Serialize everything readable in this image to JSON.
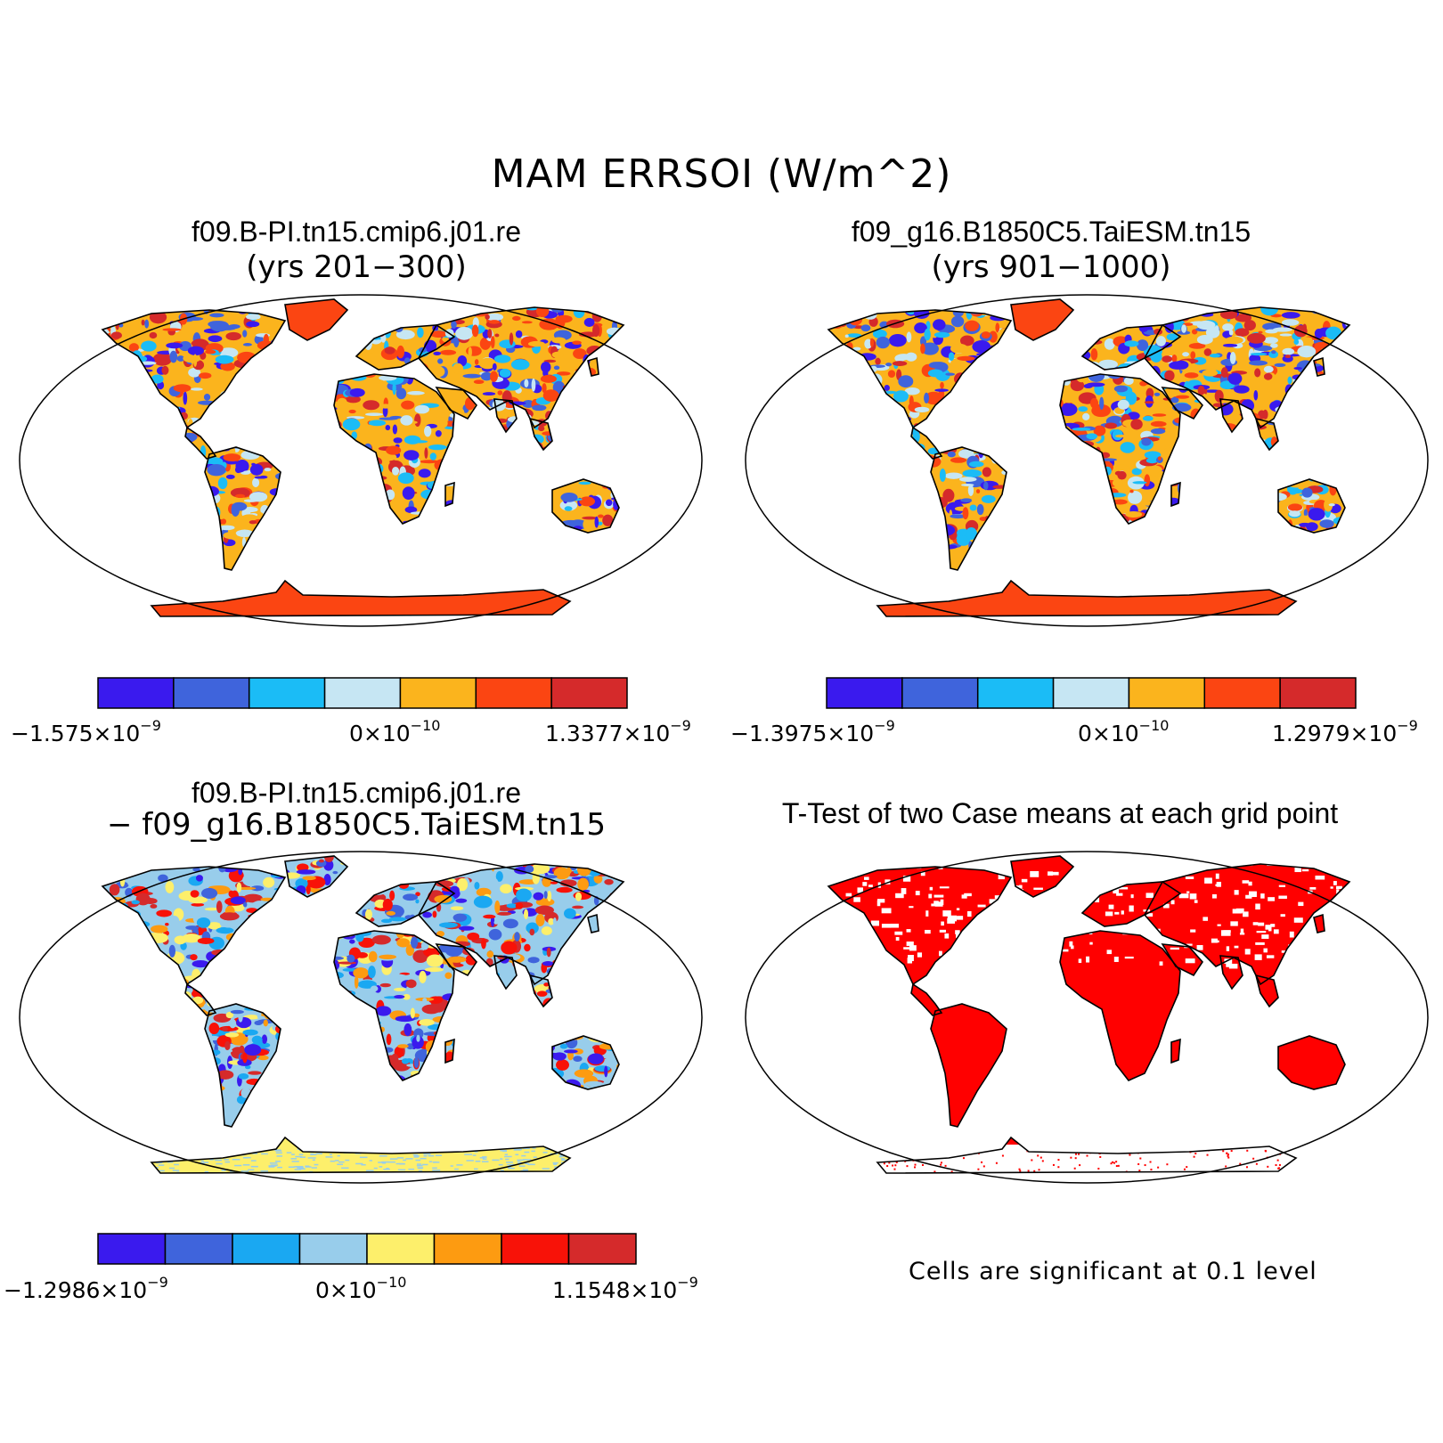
{
  "title": "MAM ERRSOI (W/m^2)",
  "colors": {
    "seq7": [
      "#3a1aee",
      "#3f64dc",
      "#1bbcf6",
      "#c6e6f3",
      "#fbb41d",
      "#fb4512",
      "#d52a2b"
    ],
    "seq8": [
      "#3a1aee",
      "#3f64dc",
      "#1aa8f2",
      "#98cdeb",
      "#fdef6b",
      "#fd9b11",
      "#f81208",
      "#d52a2b"
    ],
    "signif": "#ff0000"
  },
  "panels": [
    {
      "title": "f09.B-PI.tn15.cmip6.j01.re",
      "subtitle": "(yrs 201−300)",
      "colorbar": {
        "min_label": {
          "base": "−1.575×10",
          "exp": "−9"
        },
        "mid_label": {
          "base": "0×10",
          "exp": "−10"
        },
        "max_label": {
          "base": "1.3377×10",
          "exp": "−9"
        }
      }
    },
    {
      "title": "f09_g16.B1850C5.TaiESM.tn15",
      "subtitle": "(yrs 901−1000)",
      "colorbar": {
        "min_label": {
          "base": "−1.3975×10",
          "exp": "−9"
        },
        "mid_label": {
          "base": "0×10",
          "exp": "−10"
        },
        "max_label": {
          "base": "1.2979×10",
          "exp": "−9"
        }
      }
    },
    {
      "title": "f09.B-PI.tn15.cmip6.j01.re",
      "subtitle": "− f09_g16.B1850C5.TaiESM.tn15",
      "colorbar": {
        "min_label": {
          "base": "−1.2986×10",
          "exp": "−9"
        },
        "mid_label": {
          "base": "0×10",
          "exp": "−10"
        },
        "max_label": {
          "base": "1.1548×10",
          "exp": "−9"
        }
      }
    },
    {
      "title": "T-Test of two Case means at each grid point",
      "note": "Cells are significant at 0.1 level"
    }
  ]
}
